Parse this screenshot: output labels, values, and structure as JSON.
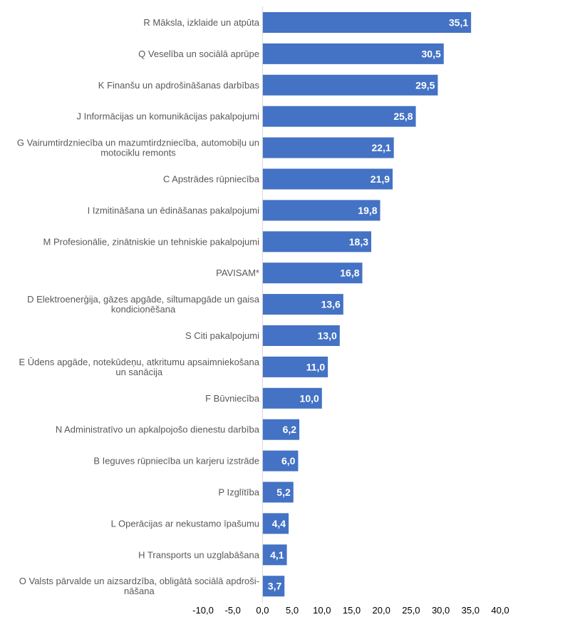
{
  "chart_data": {
    "type": "bar",
    "orientation": "horizontal",
    "categories": [
      [
        "R Māksla, izklaide un atpūta"
      ],
      [
        "Q Veselība un sociālā aprūpe"
      ],
      [
        "K Finanšu un apdrošināšanas darbības"
      ],
      [
        "J Informācijas un komunikācijas pakalpojumi"
      ],
      [
        "G Vairumtirdzniecība un mazumtirdzniecība, automobiļu un",
        "motociklu remonts"
      ],
      [
        "C Apstrādes rūpniecība"
      ],
      [
        "I Izmitināšana un ēdināšanas pakalpojumi"
      ],
      [
        "M Profesionālie, zinātniskie un tehniskie pakalpojumi"
      ],
      [
        "PAVISAM*"
      ],
      [
        "D Elektroenerģija, gāzes apgāde, siltumapgāde un gaisa",
        "kondicionēšana"
      ],
      [
        "S Citi pakalpojumi"
      ],
      [
        "E Ūdens apgāde, notekūdeņu, atkritumu apsaimniekošana",
        "un sanācija"
      ],
      [
        "F Būvniecība"
      ],
      [
        "N Administratīvo un apkalpojošo dienestu darbība"
      ],
      [
        "B Ieguves rūpniecība un karjeru izstrāde"
      ],
      [
        "P Izglītība"
      ],
      [
        "L Operācijas ar nekustamo īpašumu"
      ],
      [
        "H Transports un uzglabāšana"
      ],
      [
        "O Valsts pārvalde un aizsardzība, obligātā sociālā apdroši-",
        "nāšana"
      ]
    ],
    "values": [
      35.1,
      30.5,
      29.5,
      25.8,
      22.1,
      21.9,
      19.8,
      18.3,
      16.8,
      13.6,
      13.0,
      11.0,
      10.0,
      6.2,
      6.0,
      5.2,
      4.4,
      4.1,
      3.7
    ],
    "value_labels": [
      "35,1",
      "30,5",
      "29,5",
      "25,8",
      "22,1",
      "21,9",
      "19,8",
      "18,3",
      "16,8",
      "13,6",
      "13,0",
      "11,0",
      "10,0",
      "6,2",
      "6,0",
      "5,2",
      "4,4",
      "4,1",
      "3,7"
    ],
    "xlim": [
      -10,
      40
    ],
    "xticks": [
      -10,
      -5,
      0,
      5,
      10,
      15,
      20,
      25,
      30,
      35,
      40
    ],
    "xtick_labels": [
      "-10,0",
      "-5,0",
      "0,0",
      "5,0",
      "10,0",
      "15,0",
      "20,0",
      "25,0",
      "30,0",
      "35,0",
      "40,0"
    ],
    "title": "",
    "xlabel": "",
    "ylabel": "",
    "grid": false,
    "legend": false,
    "bar_color": "#4472c4",
    "label_color": "#595959",
    "axis_line_color": "#d9d9d9"
  }
}
